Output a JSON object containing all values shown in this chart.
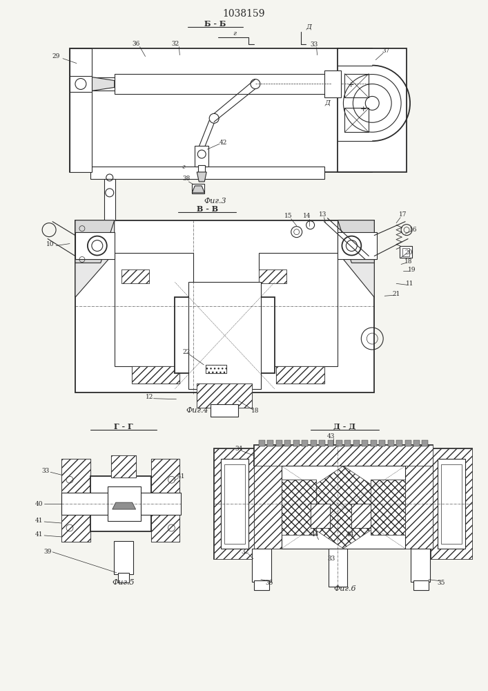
{
  "patent_number": "1038159",
  "background_color": "#f5f5f0",
  "line_color": "#2a2a2a",
  "figsize": [
    7.07,
    10.0
  ],
  "dpi": 100,
  "fig3_label": "Фиг.3",
  "fig4_label": "Фиг.4",
  "fig5_label": "Фиг.5",
  "fig6_label": "Фиг.6",
  "section_bb": "Б - Б",
  "section_vv": "В - В",
  "section_gg": "Г - Г",
  "section_dd": "Д - Д"
}
